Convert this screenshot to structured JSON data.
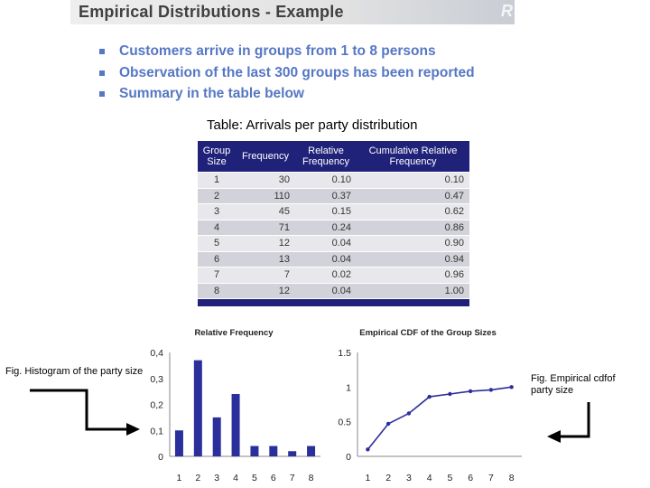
{
  "header": {
    "title": "Empirical Distributions - Example",
    "logo": "R"
  },
  "bullets": [
    "Customers arrive in groups from 1 to 8 persons",
    "Observation of the last 300 groups has been reported",
    "Summary in the table below"
  ],
  "table": {
    "caption": "Table: Arrivals per party distribution",
    "headers": [
      "Group Size",
      "Frequency",
      "Relative Frequency",
      "Cumulative Relative Frequency"
    ],
    "rows": [
      [
        "1",
        "30",
        "0.10",
        "0.10"
      ],
      [
        "2",
        "110",
        "0.37",
        "0.47"
      ],
      [
        "3",
        "45",
        "0.15",
        "0.62"
      ],
      [
        "4",
        "71",
        "0.24",
        "0.86"
      ],
      [
        "5",
        "12",
        "0.04",
        "0.90"
      ],
      [
        "6",
        "13",
        "0.04",
        "0.94"
      ],
      [
        "7",
        "7",
        "0.02",
        "0.96"
      ],
      [
        "8",
        "12",
        "0.04",
        "1.00"
      ]
    ]
  },
  "annotations": {
    "left": "Fig. Histogram of the party size",
    "right": "Fig. Empirical cdfof party size"
  },
  "colors": {
    "bars": "#2b2f9b",
    "table_header": "#20227a",
    "bullet_text": "#5577c4"
  },
  "chart_data": [
    {
      "type": "bar",
      "title": "Relative Frequency",
      "categories": [
        "1",
        "2",
        "3",
        "4",
        "5",
        "6",
        "7",
        "8"
      ],
      "values": [
        0.1,
        0.37,
        0.15,
        0.24,
        0.04,
        0.04,
        0.02,
        0.04
      ],
      "ylim": [
        0,
        0.4
      ],
      "yticks": [
        "0",
        "0,1",
        "0,2",
        "0,3",
        "0,4"
      ],
      "grid": false
    },
    {
      "type": "line",
      "title": "Empirical CDF of the Group Sizes",
      "x": [
        "1",
        "2",
        "3",
        "4",
        "5",
        "6",
        "7",
        "8"
      ],
      "values": [
        0.1,
        0.47,
        0.62,
        0.86,
        0.9,
        0.94,
        0.96,
        1.0
      ],
      "ylim": [
        0,
        1.5
      ],
      "yticks": [
        "0",
        "0.5",
        "1",
        "1.5"
      ],
      "grid": false
    }
  ]
}
